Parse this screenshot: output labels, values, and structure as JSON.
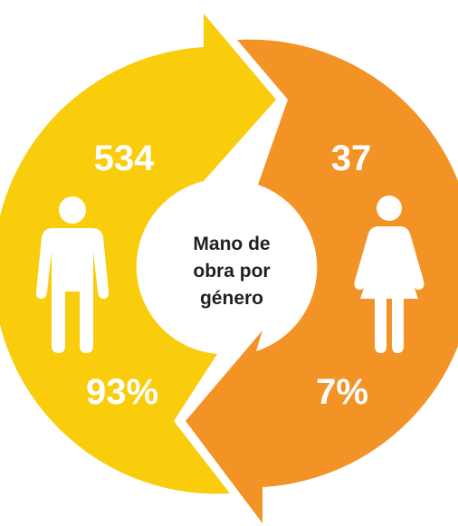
{
  "center_label": {
    "lines": [
      "Mano de",
      "obra por",
      "género"
    ]
  },
  "groups": [
    {
      "name": "hombres",
      "count": 534,
      "percent": "93%"
    },
    {
      "name": "mujeres",
      "count": 37,
      "percent": "7%"
    }
  ]
}
